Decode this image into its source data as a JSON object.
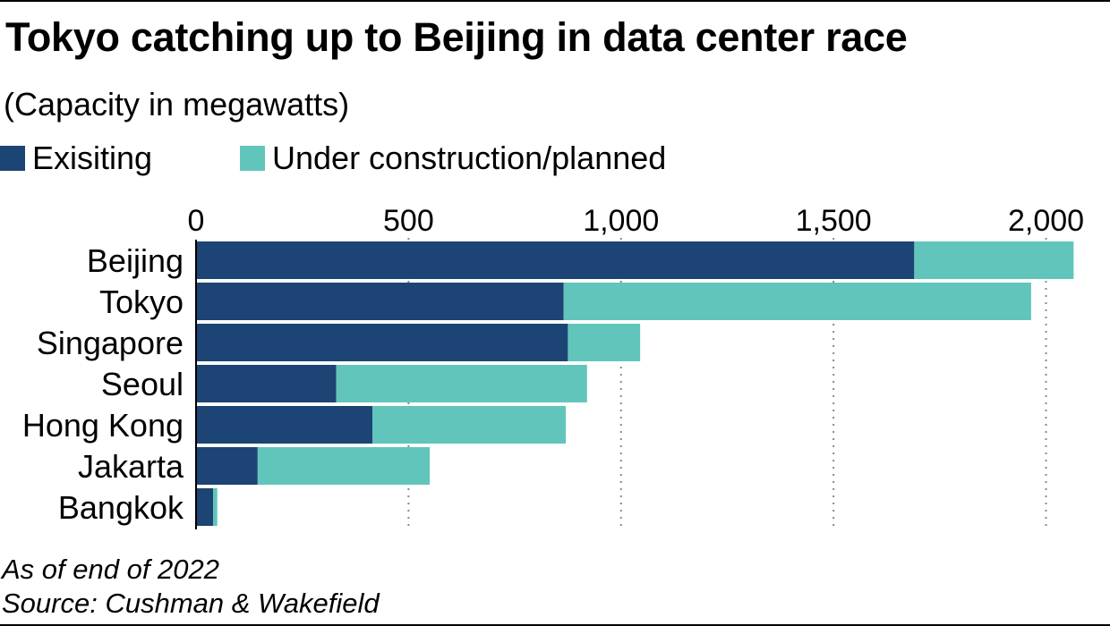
{
  "chart_data": {
    "type": "bar",
    "orientation": "horizontal",
    "stacked": true,
    "title": "Tokyo catching up to Beijing in data center race",
    "subtitle": "(Capacity in megawatts)",
    "categories": [
      "Beijing",
      "Tokyo",
      "Singapore",
      "Seoul",
      "Hong Kong",
      "Jakarta",
      "Bangkok"
    ],
    "series": [
      {
        "name": "Exisiting",
        "color": "#1c4474",
        "values": [
          1690,
          865,
          875,
          330,
          415,
          145,
          40
        ]
      },
      {
        "name": "Under construction/planned",
        "color": "#62c5bc",
        "values": [
          375,
          1100,
          170,
          590,
          455,
          405,
          10
        ]
      }
    ],
    "x_ticks": [
      0,
      500,
      1000,
      1500,
      2000
    ],
    "x_tick_labels": [
      "0",
      "500",
      "1,000",
      "1,500",
      "2,000"
    ],
    "xlim": [
      0,
      2100
    ],
    "grid": "vertical dotted",
    "legend_position": "top-left"
  },
  "notes": {
    "as_of": "As of end of 2022",
    "source": "Source: Cushman & Wakefield"
  }
}
